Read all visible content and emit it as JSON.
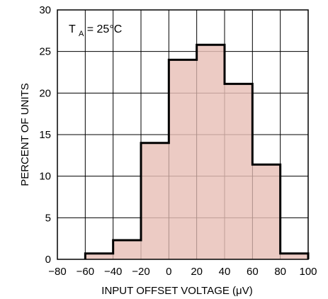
{
  "chart_data": {
    "type": "histogram",
    "bins": [
      {
        "from": -60,
        "to": -40,
        "value": 0.7
      },
      {
        "from": -40,
        "to": -20,
        "value": 2.3
      },
      {
        "from": -20,
        "to": 0,
        "value": 14.0
      },
      {
        "from": 0,
        "to": 20,
        "value": 24.0
      },
      {
        "from": 20,
        "to": 40,
        "value": 25.8
      },
      {
        "from": 40,
        "to": 60,
        "value": 21.1
      },
      {
        "from": 60,
        "to": 80,
        "value": 11.4
      },
      {
        "from": 80,
        "to": 100,
        "value": 0.7
      }
    ],
    "x_ticks": [
      "−80",
      "−60",
      "−40",
      "−20",
      "0",
      "20",
      "40",
      "60",
      "80",
      "100"
    ],
    "y_ticks": [
      "0",
      "5",
      "10",
      "15",
      "20",
      "25",
      "30"
    ],
    "xlim": [
      -80,
      100
    ],
    "ylim": [
      0,
      30
    ],
    "xlabel": "INPUT OFFSET VOLTAGE (μV)",
    "ylabel": "PERCENT OF UNITS",
    "annotation": {
      "main": "T",
      "subscript": "A",
      "rest": " = 25°C"
    },
    "grid": true,
    "colors": {
      "fill": "#e8c0b7",
      "outline": "#000000",
      "grid": "#000000",
      "background": "#ffffff"
    }
  }
}
